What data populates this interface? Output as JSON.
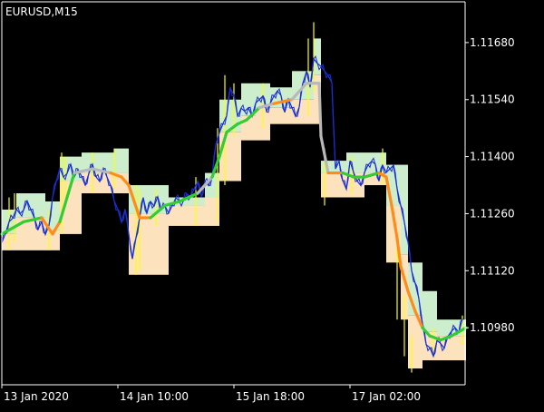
{
  "chart_data": {
    "type": "line",
    "title": "EURUSD,M15",
    "y_ticks": [
      1.1098,
      1.1112,
      1.1126,
      1.114,
      1.1154,
      1.1168
    ],
    "x_tick_labels": [
      "13 Jan 2020",
      "14 Jan 10:00",
      "15 Jan 18:00",
      "17 Jan 02:00"
    ],
    "ylim": [
      1.1084,
      1.1178
    ],
    "grid": false,
    "colors": {
      "background": "#000000",
      "axis": "#ffffff",
      "price_line": "#1a2fd6",
      "high_low_wick": "#ffff00",
      "upper_band_fill": "#cdeecc",
      "lower_band_fill": "#fde3bd",
      "ma_up": "#33cc33",
      "ma_down": "#ff8c1a",
      "ma_flat": "#b8b8b8"
    },
    "series": [
      {
        "x": [
          0,
          4,
          8,
          12,
          16,
          20,
          24,
          28,
          32,
          36,
          40,
          44,
          48,
          52,
          56,
          60,
          64,
          68,
          72,
          76,
          80,
          84,
          88,
          92,
          96,
          100,
          104,
          108,
          112,
          116,
          120,
          124,
          128,
          132,
          136,
          140,
          144,
          148,
          152,
          156,
          160,
          164,
          168,
          172,
          176,
          180,
          184,
          188,
          192,
          196,
          200,
          204,
          208,
          212,
          216,
          220,
          224,
          228,
          232,
          236,
          240,
          244,
          248,
          252,
          256,
          260,
          264,
          268,
          272,
          276,
          280,
          284,
          288,
          292,
          296,
          300,
          304,
          308,
          312,
          316,
          320,
          324,
          328,
          332,
          336,
          340,
          344,
          348,
          352,
          356,
          360,
          364,
          368,
          372,
          376,
          380,
          384,
          388,
          392,
          396,
          400,
          404,
          408,
          412,
          416,
          420,
          424,
          428,
          432,
          436,
          440,
          444,
          448,
          452,
          456,
          460,
          464,
          468,
          472,
          476,
          480,
          484,
          488,
          492,
          496,
          500,
          504,
          508
        ],
        "values": [
          1.1119,
          1.1121,
          1.1124,
          1.1125,
          1.1127,
          1.1126,
          1.1127,
          1.1129,
          1.1127,
          1.1125,
          1.1122,
          1.1124,
          1.1121,
          1.1123,
          1.113,
          1.1134,
          1.1137,
          1.1135,
          1.1136,
          1.1138,
          1.1135,
          1.1137,
          1.1135,
          1.1133,
          1.1136,
          1.1138,
          1.1135,
          1.1134,
          1.1137,
          1.1135,
          1.1133,
          1.1129,
          1.1127,
          1.1124,
          1.1127,
          1.1121,
          1.1115,
          1.112,
          1.1125,
          1.113,
          1.1126,
          1.1129,
          1.1128,
          1.113,
          1.1127,
          1.1128,
          1.1126,
          1.1128,
          1.113,
          1.1129,
          1.1129,
          1.1131,
          1.113,
          1.1132,
          1.1134,
          1.113,
          1.1134,
          1.1133,
          1.1135,
          1.1143,
          1.1146,
          1.1148,
          1.115,
          1.1157,
          1.1155,
          1.115,
          1.1152,
          1.1151,
          1.1152,
          1.115,
          1.1153,
          1.1154,
          1.1155,
          1.1151,
          1.1153,
          1.1155,
          1.1156,
          1.1155,
          1.1151,
          1.1154,
          1.1152,
          1.115,
          1.1152,
          1.1158,
          1.1161,
          1.1157,
          1.1164,
          1.1163,
          1.1162,
          1.1161,
          1.116,
          1.1158,
          1.1137,
          1.1139,
          1.1134,
          1.1132,
          1.1139,
          1.1136,
          1.1134,
          1.1133,
          1.1136,
          1.1138,
          1.1139,
          1.1138,
          1.1134,
          1.1138,
          1.1136,
          1.1137,
          1.1138,
          1.1132,
          1.1128,
          1.1124,
          1.1119,
          1.1112,
          1.1109,
          1.1105,
          1.1099,
          1.1094,
          1.1093,
          1.1091,
          1.1095,
          1.1094,
          1.1093,
          1.1096,
          1.1097,
          1.1098,
          1.1097,
          1.11
        ]
      },
      {
        "x": [
          0,
          24,
          44,
          56,
          64,
          80,
          100,
          120,
          132,
          140,
          152,
          164,
          180,
          196,
          216,
          232,
          240,
          248,
          260,
          270,
          284,
          300,
          320,
          336,
          350,
          352,
          360,
          376,
          388,
          400,
          416,
          424,
          430,
          436,
          440,
          448,
          456,
          464,
          472,
          484,
          496,
          512
        ],
        "values": [
          1.1121,
          1.1124,
          1.1125,
          1.1121,
          1.1124,
          1.1136,
          1.1137,
          1.1136,
          1.1135,
          1.1133,
          1.1125,
          1.1125,
          1.1128,
          1.1129,
          1.1131,
          1.1135,
          1.114,
          1.1146,
          1.1148,
          1.1149,
          1.1152,
          1.1153,
          1.1154,
          1.1158,
          1.1158,
          1.1145,
          1.1136,
          1.1136,
          1.1135,
          1.1135,
          1.1136,
          1.1135,
          1.1128,
          1.112,
          1.1113,
          1.1107,
          1.1102,
          1.1098,
          1.1096,
          1.1095,
          1.1096,
          1.1098
        ]
      }
    ],
    "ma_colors": [
      "ma_up",
      "ma_up",
      "ma_down",
      "ma_down",
      "ma_up",
      "ma_flat",
      "ma_flat",
      "ma_down",
      "ma_down",
      "ma_down",
      "ma_down",
      "ma_up",
      "ma_up",
      "ma_up",
      "ma_flat",
      "ma_up",
      "ma_up",
      "ma_up",
      "ma_up",
      "ma_up",
      "ma_flat",
      "ma_down",
      "ma_flat",
      "ma_flat",
      "ma_flat",
      "ma_flat",
      "ma_down",
      "ma_up",
      "ma_up",
      "ma_up",
      "ma_down",
      "ma_down",
      "ma_down",
      "ma_down",
      "ma_down",
      "ma_down",
      "ma_down",
      "ma_up",
      "ma_up",
      "ma_up",
      "ma_up"
    ],
    "band_steps": [
      {
        "x0": 0,
        "x1": 16,
        "upper": 1.1127,
        "mid": 1.1121,
        "lower": 1.1117
      },
      {
        "x0": 16,
        "x1": 48,
        "upper": 1.1131,
        "mid": 1.1125,
        "lower": 1.1117
      },
      {
        "x0": 48,
        "x1": 64,
        "upper": 1.1129,
        "mid": 1.1122,
        "lower": 1.1117
      },
      {
        "x0": 64,
        "x1": 88,
        "upper": 1.114,
        "mid": 1.1134,
        "lower": 1.1121
      },
      {
        "x0": 88,
        "x1": 124,
        "upper": 1.1141,
        "mid": 1.1136,
        "lower": 1.1131
      },
      {
        "x0": 124,
        "x1": 140,
        "upper": 1.1142,
        "mid": 1.1136,
        "lower": 1.1131
      },
      {
        "x0": 140,
        "x1": 160,
        "upper": 1.1133,
        "mid": 1.1126,
        "lower": 1.1111
      },
      {
        "x0": 160,
        "x1": 184,
        "upper": 1.1133,
        "mid": 1.1126,
        "lower": 1.1111
      },
      {
        "x0": 184,
        "x1": 224,
        "upper": 1.113,
        "mid": 1.1128,
        "lower": 1.1123
      },
      {
        "x0": 224,
        "x1": 240,
        "upper": 1.1136,
        "mid": 1.113,
        "lower": 1.1123
      },
      {
        "x0": 240,
        "x1": 264,
        "upper": 1.1154,
        "mid": 1.1146,
        "lower": 1.1134
      },
      {
        "x0": 264,
        "x1": 280,
        "upper": 1.1158,
        "mid": 1.115,
        "lower": 1.1144
      },
      {
        "x0": 280,
        "x1": 296,
        "upper": 1.1158,
        "mid": 1.1152,
        "lower": 1.1144
      },
      {
        "x0": 296,
        "x1": 320,
        "upper": 1.1157,
        "mid": 1.1152,
        "lower": 1.1148
      },
      {
        "x0": 320,
        "x1": 344,
        "upper": 1.1161,
        "mid": 1.1154,
        "lower": 1.1148
      },
      {
        "x0": 344,
        "x1": 352,
        "upper": 1.1169,
        "mid": 1.116,
        "lower": 1.1148
      },
      {
        "x0": 352,
        "x1": 380,
        "upper": 1.1139,
        "mid": 1.1136,
        "lower": 1.113
      },
      {
        "x0": 380,
        "x1": 400,
        "upper": 1.1141,
        "mid": 1.1136,
        "lower": 1.113
      },
      {
        "x0": 400,
        "x1": 424,
        "upper": 1.1141,
        "mid": 1.1136,
        "lower": 1.1133
      },
      {
        "x0": 424,
        "x1": 440,
        "upper": 1.1138,
        "mid": 1.1128,
        "lower": 1.1114
      },
      {
        "x0": 440,
        "x1": 448,
        "upper": 1.1138,
        "mid": 1.1116,
        "lower": 1.11
      },
      {
        "x0": 448,
        "x1": 464,
        "upper": 1.1114,
        "mid": 1.1101,
        "lower": 1.1088
      },
      {
        "x0": 464,
        "x1": 480,
        "upper": 1.1107,
        "mid": 1.1097,
        "lower": 1.109
      },
      {
        "x0": 480,
        "x1": 512,
        "upper": 1.11,
        "mid": 1.1096,
        "lower": 1.109
      }
    ],
    "wick_spikes": [
      {
        "x": 8,
        "high": 1.113,
        "low": 1.1117
      },
      {
        "x": 14,
        "high": 1.1131,
        "low": 1.1119
      },
      {
        "x": 52,
        "high": 1.1127,
        "low": 1.1117
      },
      {
        "x": 66,
        "high": 1.1141,
        "low": 1.1121
      },
      {
        "x": 70,
        "high": 1.114,
        "low": 1.113
      },
      {
        "x": 100,
        "high": 1.1141,
        "low": 1.1131
      },
      {
        "x": 124,
        "high": 1.1142,
        "low": 1.1132
      },
      {
        "x": 148,
        "high": 1.1133,
        "low": 1.1111
      },
      {
        "x": 152,
        "high": 1.1132,
        "low": 1.1112
      },
      {
        "x": 170,
        "high": 1.1132,
        "low": 1.1123
      },
      {
        "x": 214,
        "high": 1.1135,
        "low": 1.1123
      },
      {
        "x": 238,
        "high": 1.1147,
        "low": 1.1124
      },
      {
        "x": 246,
        "high": 1.116,
        "low": 1.1133
      },
      {
        "x": 256,
        "high": 1.1158,
        "low": 1.1145
      },
      {
        "x": 288,
        "high": 1.1158,
        "low": 1.1147
      },
      {
        "x": 338,
        "high": 1.1169,
        "low": 1.115
      },
      {
        "x": 344,
        "high": 1.1173,
        "low": 1.1156
      },
      {
        "x": 356,
        "high": 1.1142,
        "low": 1.1128
      },
      {
        "x": 386,
        "high": 1.114,
        "low": 1.1131
      },
      {
        "x": 420,
        "high": 1.1142,
        "low": 1.1133
      },
      {
        "x": 436,
        "high": 1.1118,
        "low": 1.11
      },
      {
        "x": 444,
        "high": 1.1106,
        "low": 1.1091
      },
      {
        "x": 452,
        "high": 1.1096,
        "low": 1.1087
      },
      {
        "x": 476,
        "high": 1.1098,
        "low": 1.1091
      },
      {
        "x": 508,
        "high": 1.1101,
        "low": 1.1094
      }
    ]
  }
}
